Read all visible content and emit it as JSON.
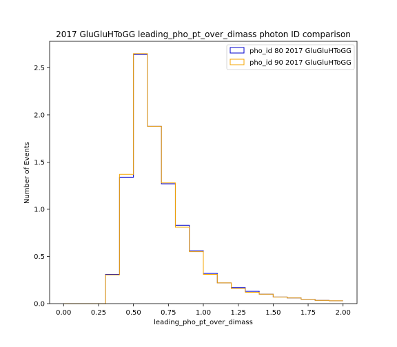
{
  "chart_data": {
    "type": "histogram-step",
    "title": "2017 GluGluHToGG leading_pho_pt_over_dimass photon ID comparison",
    "xlabel": "leading_pho_pt_over_dimass",
    "ylabel": "Number of Events",
    "xlim": [
      -0.1,
      2.1
    ],
    "ylim": [
      0,
      2.78
    ],
    "xticks": [
      0.0,
      0.25,
      0.5,
      0.75,
      1.0,
      1.25,
      1.5,
      1.75,
      2.0
    ],
    "xtick_labels": [
      "0.00",
      "0.25",
      "0.50",
      "0.75",
      "1.00",
      "1.25",
      "1.50",
      "1.75",
      "2.00"
    ],
    "yticks": [
      0.0,
      0.5,
      1.0,
      1.5,
      2.0,
      2.5
    ],
    "ytick_labels": [
      "0.0",
      "0.5",
      "1.0",
      "1.5",
      "2.0",
      "2.5"
    ],
    "legend_position": "top-right",
    "bin_edges": [
      0.0,
      0.1,
      0.2,
      0.3,
      0.4,
      0.5,
      0.6,
      0.7,
      0.8,
      0.9,
      1.0,
      1.1,
      1.2,
      1.3,
      1.4,
      1.5,
      1.6,
      1.7,
      1.8,
      1.9,
      2.0
    ],
    "series": [
      {
        "name": "pho_id 80 2017 GluGluHToGG",
        "color": "#0000cc",
        "values": [
          0,
          0,
          0,
          0.31,
          1.34,
          2.64,
          1.88,
          1.27,
          0.83,
          0.56,
          0.32,
          0.22,
          0.17,
          0.13,
          0.1,
          0.07,
          0.06,
          0.045,
          0.035,
          0.03
        ]
      },
      {
        "name": "pho_id 90 2017 GluGluHToGG",
        "color": "#f5a500",
        "values": [
          0,
          0,
          0,
          0.305,
          1.37,
          2.65,
          1.88,
          1.28,
          0.81,
          0.55,
          0.31,
          0.22,
          0.16,
          0.12,
          0.1,
          0.07,
          0.06,
          0.045,
          0.035,
          0.03
        ]
      }
    ]
  }
}
